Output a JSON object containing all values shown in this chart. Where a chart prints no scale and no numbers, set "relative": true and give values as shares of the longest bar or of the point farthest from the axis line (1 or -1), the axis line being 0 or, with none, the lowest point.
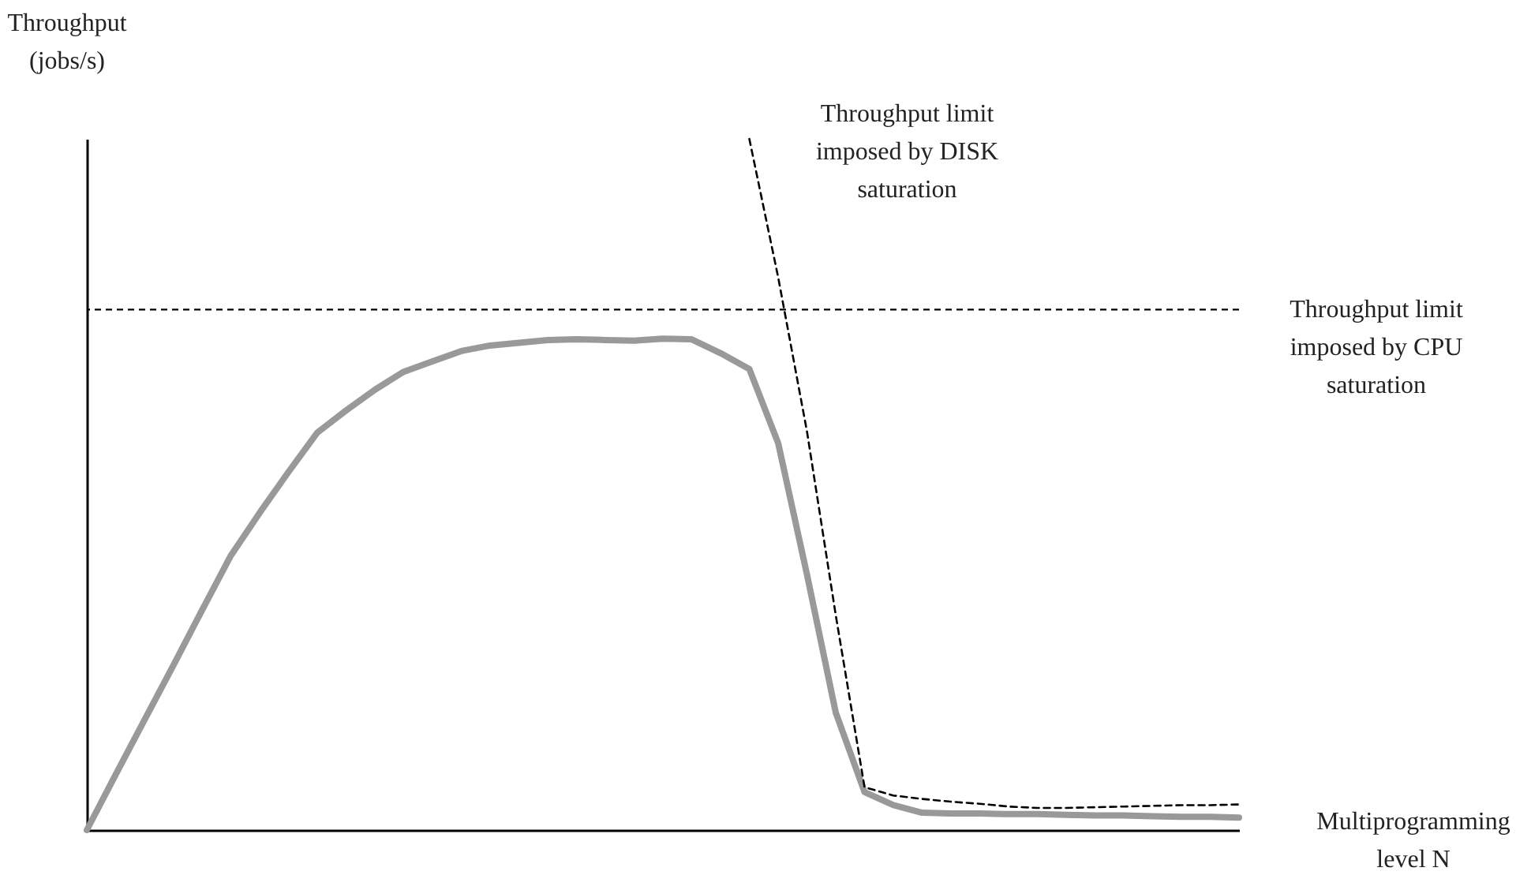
{
  "chart_data": {
    "type": "line",
    "relative": true,
    "tick_labels": false,
    "xlabel": "Multiprogramming level N",
    "ylabel": "Throughput (jobs/s)",
    "categories": [
      null,
      null,
      null,
      null,
      null,
      null,
      null,
      null,
      null,
      null,
      null,
      null,
      null,
      null,
      null,
      null,
      null,
      null,
      null,
      null,
      null,
      null,
      null,
      null,
      null,
      null,
      null,
      null,
      null,
      null,
      null,
      null,
      null,
      null,
      null,
      null,
      null,
      null,
      null,
      null,
      null
    ],
    "series": [
      {
        "color": "#999999",
        "line_style": "solid",
        "values": [
          0,
          0.08,
          0.159,
          0.238,
          0.318,
          0.397,
          0.459,
          0.518,
          0.575,
          0.607,
          0.637,
          0.663,
          0.678,
          0.693,
          0.701,
          0.705,
          0.709,
          0.71,
          0.709,
          0.708,
          0.711,
          0.71,
          0.69,
          0.667,
          0.56,
          0.37,
          0.17,
          0.055,
          0.036,
          0.025,
          0.024,
          0.024,
          0.023,
          0.023,
          0.022,
          0.021,
          0.021,
          0.02,
          0.019,
          0.019,
          0.018
        ]
      },
      {
        "name": "Throughput limit imposed by DISK saturation",
        "color": "#000000",
        "line_style": "dashed",
        "values": [
          null,
          null,
          null,
          null,
          null,
          null,
          null,
          null,
          null,
          null,
          null,
          null,
          null,
          null,
          null,
          null,
          null,
          null,
          null,
          null,
          null,
          null,
          null,
          1,
          0.8,
          0.577,
          0.311,
          0.062,
          0.05,
          0.045,
          0.041,
          0.038,
          0.034,
          0.032,
          0.032,
          0.033,
          0.034,
          0.035,
          0.036,
          0.036,
          0.037
        ]
      }
    ],
    "ref_lines": [
      {
        "axis": "y",
        "value": 0.753,
        "label": "Throughput limit imposed by CPU saturation",
        "color": "#000000",
        "line_style": "dashed"
      }
    ]
  }
}
